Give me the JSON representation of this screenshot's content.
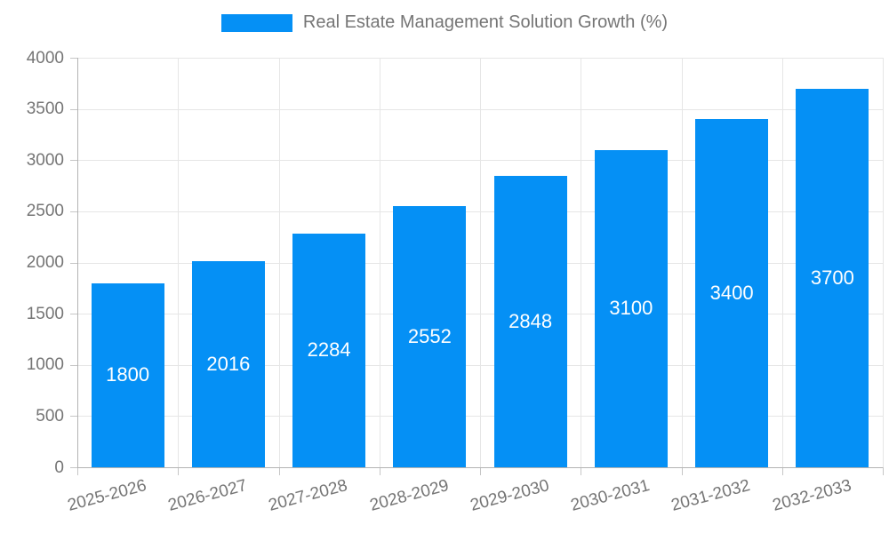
{
  "chart_data": {
    "type": "bar",
    "title": "Real Estate Management Solution Growth (%)",
    "categories": [
      "2025-2026",
      "2026-2027",
      "2027-2028",
      "2028-2029",
      "2029-2030",
      "2030-2031",
      "2031-2032",
      "2032-2033"
    ],
    "values": [
      1800,
      2016,
      2284,
      2552,
      2848,
      3100,
      3400,
      3700
    ],
    "series": [
      {
        "name": "Real Estate Management Solution Growth (%)",
        "values": [
          1800,
          2016,
          2284,
          2552,
          2848,
          3100,
          3400,
          3700
        ]
      }
    ],
    "xlabel": "",
    "ylabel": "",
    "ylim": [
      0,
      4000
    ],
    "y_ticks": [
      0,
      500,
      1000,
      1500,
      2000,
      2500,
      3000,
      3500,
      4000
    ],
    "grid": true,
    "legend_position": "top",
    "bar_labels_inside": true,
    "x_label_rotation_deg": -15
  },
  "colors": {
    "bar": "#0590f5",
    "bar_label": "#ffffff",
    "axis_text": "#757575",
    "legend_text": "#757575",
    "gridline": "#e6e6e6",
    "axis_line": "#b3b3b3",
    "tick_mark": "#c6c6c6",
    "background": "#ffffff"
  }
}
